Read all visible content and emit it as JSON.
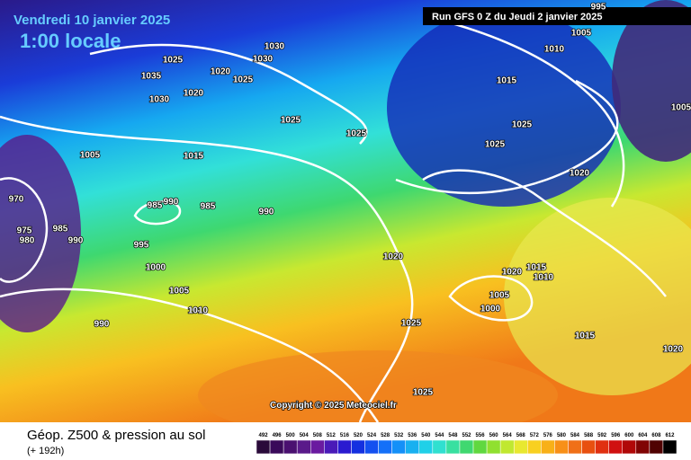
{
  "header": {
    "date": "Vendredi 10 janvier 2025",
    "time": "1:00 locale",
    "run": "Run GFS 0 Z du Jeudi 2 janvier 2025"
  },
  "copyright": "Copyright © 2025 Meteociel.fr",
  "footer": {
    "title": "Géop. Z500 & pression au sol",
    "lead": "(+ 192h)"
  },
  "scale": {
    "labels": [
      "492",
      "496",
      "500",
      "504",
      "508",
      "512",
      "516",
      "520",
      "524",
      "528",
      "532",
      "536",
      "540",
      "544",
      "548",
      "552",
      "556",
      "560",
      "564",
      "568",
      "572",
      "576",
      "580",
      "584",
      "588",
      "592",
      "596",
      "600",
      "604",
      "608",
      "612"
    ]
  },
  "isobars": [
    "1030",
    "1030",
    "1025",
    "1020",
    "1025",
    "1035",
    "1030",
    "1020",
    "1025",
    "1025",
    "1015",
    "1005",
    "1010",
    "1005",
    "995",
    "1015",
    "1025",
    "1025",
    "1020",
    "1005",
    "970",
    "975",
    "980",
    "985",
    "990",
    "990",
    "985",
    "985",
    "990",
    "995",
    "1000",
    "1005",
    "1010",
    "990",
    "1020",
    "1020",
    "1015",
    "1010",
    "1005",
    "1000",
    "1025",
    "1015",
    "1020",
    "1025"
  ]
}
